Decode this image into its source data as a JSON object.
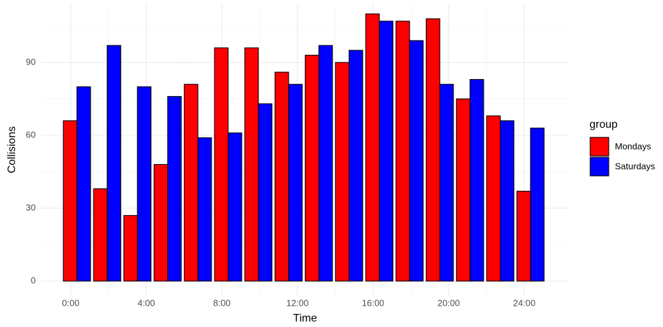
{
  "chart_data": {
    "type": "bar",
    "x_label": "Time",
    "y_label": "Collisions",
    "legend_title": "group",
    "x": [
      0.33,
      1.93,
      3.53,
      5.13,
      6.73,
      8.33,
      9.93,
      11.53,
      13.13,
      14.73,
      16.33,
      17.93,
      19.53,
      21.13,
      22.73,
      24.33
    ],
    "series": [
      {
        "name": "Mondays",
        "color": "#ff0000",
        "values": [
          66,
          38,
          27,
          48,
          81,
          96,
          96,
          86,
          93,
          90,
          110,
          107,
          108,
          75,
          68,
          37
        ]
      },
      {
        "name": "Saturdays",
        "color": "#0000ff",
        "values": [
          80,
          97,
          80,
          76,
          59,
          61,
          73,
          81,
          97,
          95,
          107,
          99,
          81,
          83,
          66,
          63
        ]
      }
    ],
    "xlim": [
      -1.56,
      26.36
    ],
    "ylim": [
      -5.9,
      114.3
    ],
    "xticks": [
      {
        "value": 0,
        "label": "0:00"
      },
      {
        "value": 4,
        "label": "4:00"
      },
      {
        "value": 8,
        "label": "8:00"
      },
      {
        "value": 12,
        "label": "12:00"
      },
      {
        "value": 16,
        "label": "16:00"
      },
      {
        "value": 20,
        "label": "20:00"
      },
      {
        "value": 24,
        "label": "24:00"
      }
    ],
    "xminor": [
      2,
      6,
      10,
      14,
      18,
      22
    ],
    "yticks": [
      0,
      30,
      60,
      90
    ],
    "yminor": [
      15,
      45,
      75,
      105
    ],
    "grid": true,
    "legend": "right"
  }
}
